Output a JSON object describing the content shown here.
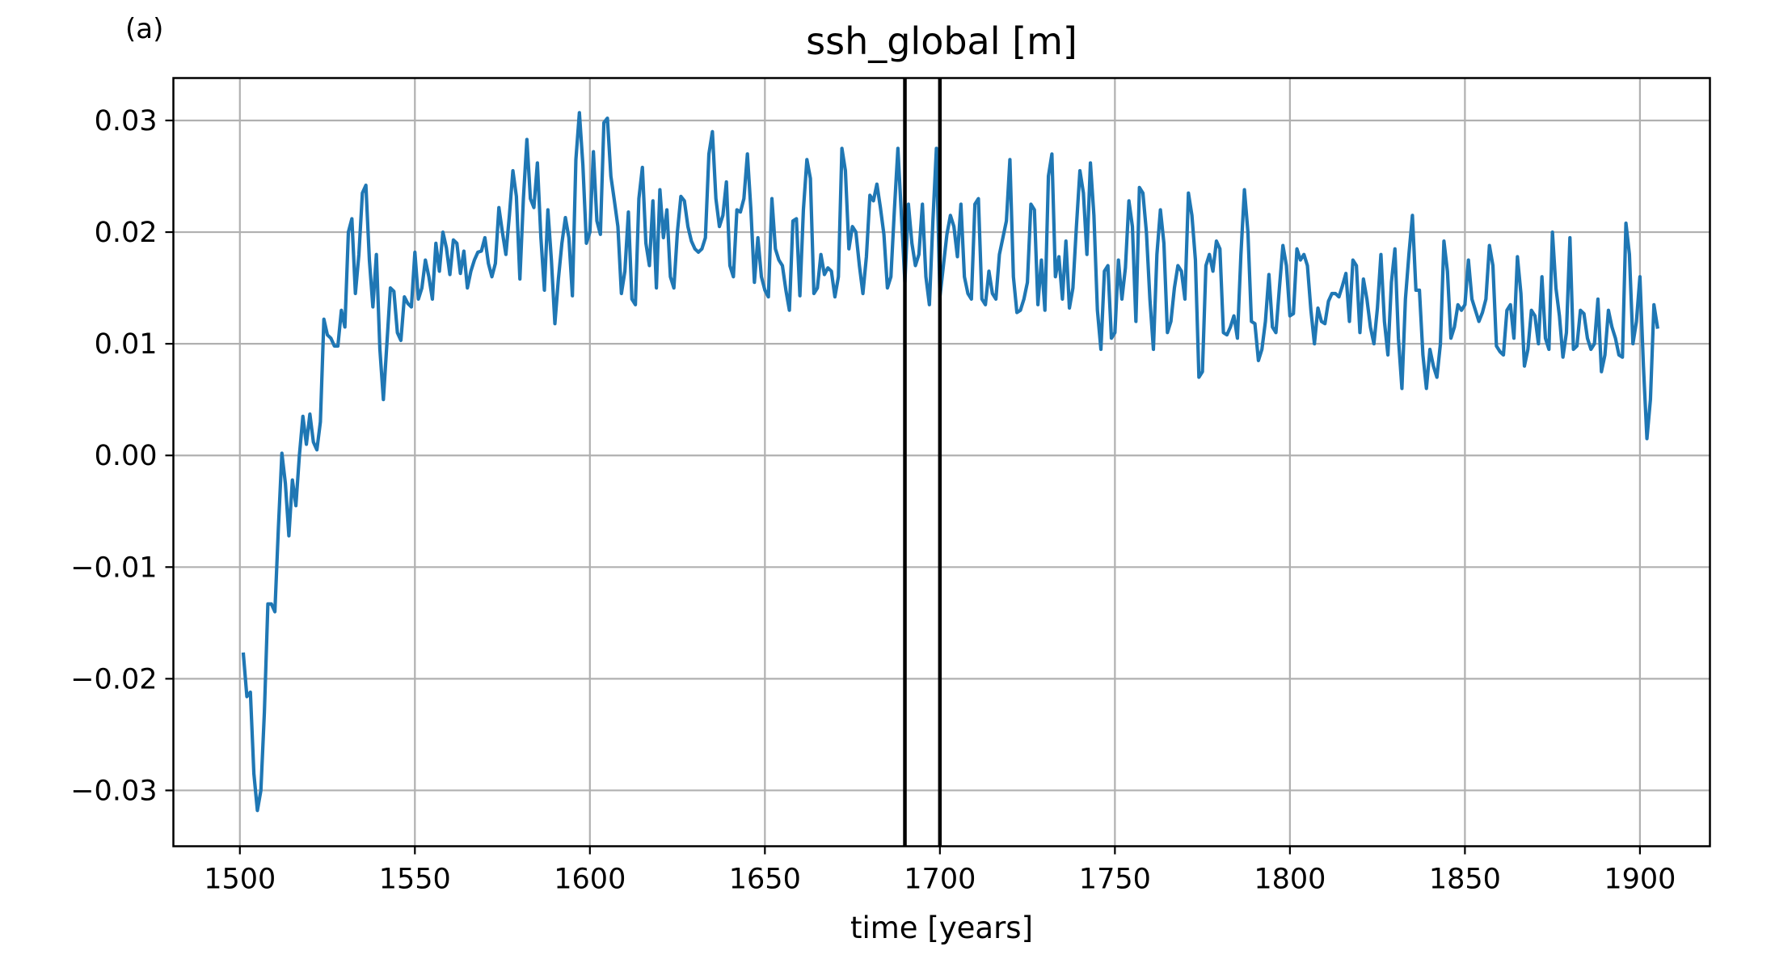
{
  "panel_label": "(a)",
  "chart_data": {
    "type": "line",
    "title": "ssh_global [m]",
    "xlabel": "time [years]",
    "ylabel": "",
    "xlim": [
      1481,
      1920
    ],
    "ylim": [
      -0.035,
      0.0338
    ],
    "xticks": [
      1500,
      1550,
      1600,
      1650,
      1700,
      1750,
      1800,
      1850,
      1900
    ],
    "xtick_labels": [
      "1500",
      "1550",
      "1600",
      "1650",
      "1700",
      "1750",
      "1800",
      "1850",
      "1900"
    ],
    "yticks": [
      -0.03,
      -0.02,
      -0.01,
      0.0,
      0.01,
      0.02,
      0.03
    ],
    "ytick_labels": [
      "−0.03",
      "−0.02",
      "−0.01",
      "0.00",
      "0.01",
      "0.02",
      "0.03"
    ],
    "grid": true,
    "vertical_lines": [
      1690,
      1700
    ],
    "colors": {
      "series": "#1f77b4",
      "vlines": "#000000",
      "grid": "#b0b0b0"
    },
    "series": [
      {
        "x_start": 1501,
        "x_step": 1,
        "values": [
          -0.0178,
          -0.0216,
          -0.0212,
          -0.0285,
          -0.0318,
          -0.03,
          -0.023,
          -0.0133,
          -0.0133,
          -0.014,
          -0.0065,
          0.0002,
          -0.0025,
          -0.0072,
          -0.0022,
          -0.0045,
          0.0,
          0.0035,
          0.001,
          0.0037,
          0.0012,
          0.0005,
          0.003,
          0.0122,
          0.0108,
          0.0105,
          0.0098,
          0.0098,
          0.013,
          0.0115,
          0.02,
          0.0212,
          0.0145,
          0.018,
          0.0235,
          0.0242,
          0.0175,
          0.0133,
          0.018,
          0.0095,
          0.005,
          0.01,
          0.015,
          0.0147,
          0.011,
          0.0103,
          0.0142,
          0.0136,
          0.0133,
          0.0182,
          0.014,
          0.015,
          0.0175,
          0.016,
          0.014,
          0.019,
          0.0165,
          0.02,
          0.0186,
          0.0162,
          0.0193,
          0.019,
          0.0163,
          0.0183,
          0.015,
          0.0165,
          0.0175,
          0.0182,
          0.0183,
          0.0195,
          0.0172,
          0.016,
          0.0172,
          0.0222,
          0.02,
          0.018,
          0.0215,
          0.0255,
          0.0232,
          0.0158,
          0.023,
          0.0283,
          0.023,
          0.0222,
          0.0262,
          0.0195,
          0.0148,
          0.022,
          0.0175,
          0.0118,
          0.0158,
          0.019,
          0.0213,
          0.0195,
          0.0143,
          0.0265,
          0.0307,
          0.026,
          0.019,
          0.02,
          0.0272,
          0.021,
          0.0198,
          0.0298,
          0.0302,
          0.025,
          0.0228,
          0.0205,
          0.0145,
          0.0165,
          0.0218,
          0.014,
          0.0135,
          0.023,
          0.0258,
          0.019,
          0.017,
          0.0228,
          0.015,
          0.0238,
          0.0195,
          0.022,
          0.016,
          0.015,
          0.02,
          0.0232,
          0.0228,
          0.0205,
          0.0192,
          0.0185,
          0.0182,
          0.0185,
          0.0195,
          0.027,
          0.029,
          0.023,
          0.0205,
          0.0215,
          0.0245,
          0.017,
          0.016,
          0.022,
          0.0218,
          0.023,
          0.027,
          0.022,
          0.0155,
          0.0195,
          0.016,
          0.0148,
          0.0142,
          0.023,
          0.0185,
          0.0175,
          0.017,
          0.0148,
          0.013,
          0.021,
          0.0212,
          0.0143,
          0.022,
          0.0265,
          0.0248,
          0.0145,
          0.015,
          0.018,
          0.0162,
          0.0168,
          0.0165,
          0.0142,
          0.016,
          0.0275,
          0.0255,
          0.0185,
          0.0205,
          0.02,
          0.017,
          0.0145,
          0.0178,
          0.0233,
          0.0228,
          0.0243,
          0.0222,
          0.0198,
          0.015,
          0.016,
          0.022,
          0.0275,
          0.0215,
          0.0155,
          0.0225,
          0.019,
          0.017,
          0.018,
          0.0225,
          0.016,
          0.0135,
          0.021,
          0.0275,
          0.0142,
          0.017,
          0.0198,
          0.0215,
          0.0205,
          0.0178,
          0.0225,
          0.016,
          0.0145,
          0.014,
          0.0225,
          0.023,
          0.014,
          0.0135,
          0.0165,
          0.0145,
          0.014,
          0.018,
          0.0195,
          0.021,
          0.0265,
          0.016,
          0.0128,
          0.013,
          0.014,
          0.0155,
          0.0225,
          0.022,
          0.0135,
          0.0175,
          0.013,
          0.025,
          0.027,
          0.016,
          0.0178,
          0.014,
          0.0192,
          0.0132,
          0.015,
          0.0205,
          0.0255,
          0.0235,
          0.018,
          0.0262,
          0.0215,
          0.013,
          0.0095,
          0.0165,
          0.017,
          0.0105,
          0.011,
          0.0175,
          0.014,
          0.0168,
          0.0228,
          0.0205,
          0.012,
          0.024,
          0.0235,
          0.02,
          0.014,
          0.0095,
          0.018,
          0.022,
          0.019,
          0.011,
          0.012,
          0.015,
          0.017,
          0.0165,
          0.014,
          0.0235,
          0.0215,
          0.0175,
          0.007,
          0.0075,
          0.017,
          0.018,
          0.0165,
          0.0192,
          0.0185,
          0.011,
          0.0108,
          0.0115,
          0.0125,
          0.0105,
          0.018,
          0.0238,
          0.02,
          0.012,
          0.0118,
          0.0085,
          0.0095,
          0.012,
          0.0162,
          0.0115,
          0.011,
          0.015,
          0.0188,
          0.017,
          0.0125,
          0.0127,
          0.0185,
          0.0175,
          0.018,
          0.017,
          0.013,
          0.01,
          0.0132,
          0.012,
          0.0118,
          0.0138,
          0.0145,
          0.0145,
          0.0142,
          0.0152,
          0.0163,
          0.012,
          0.0175,
          0.017,
          0.011,
          0.0158,
          0.014,
          0.0115,
          0.01,
          0.0132,
          0.018,
          0.012,
          0.009,
          0.0155,
          0.0185,
          0.0105,
          0.006,
          0.014,
          0.018,
          0.0215,
          0.0148,
          0.0148,
          0.009,
          0.006,
          0.0095,
          0.008,
          0.007,
          0.01,
          0.0192,
          0.0165,
          0.0105,
          0.0115,
          0.0135,
          0.013,
          0.0135,
          0.0175,
          0.014,
          0.013,
          0.012,
          0.0128,
          0.014,
          0.0188,
          0.017,
          0.0098,
          0.0093,
          0.009,
          0.013,
          0.0135,
          0.0105,
          0.0178,
          0.0145,
          0.008,
          0.0095,
          0.013,
          0.0125,
          0.01,
          0.016,
          0.0105,
          0.0095,
          0.02,
          0.015,
          0.0125,
          0.0088,
          0.011,
          0.0195,
          0.0095,
          0.0098,
          0.013,
          0.0127,
          0.0105,
          0.0095,
          0.01,
          0.014,
          0.0075,
          0.009,
          0.013,
          0.0115,
          0.0105,
          0.009,
          0.0088,
          0.0208,
          0.018,
          0.01,
          0.012,
          0.016,
          0.008,
          0.0015,
          0.005,
          0.0135,
          0.0115
        ]
      }
    ]
  }
}
